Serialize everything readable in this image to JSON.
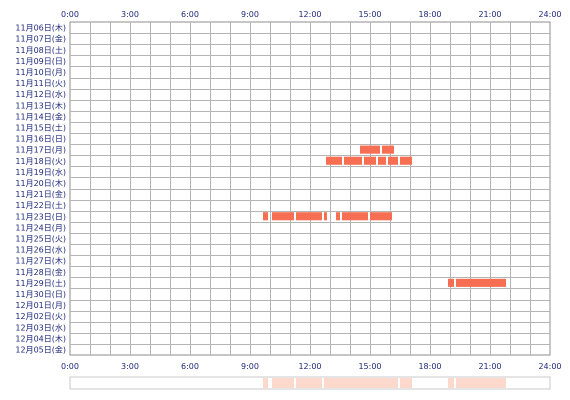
{
  "chart_data": {
    "type": "timeline",
    "x_ticks": [
      "0:00",
      "3:00",
      "6:00",
      "9:00",
      "12:00",
      "15:00",
      "18:00",
      "21:00",
      "24:00"
    ],
    "xlim": [
      0,
      24
    ],
    "grid": true,
    "rows": [
      "11月06日(木)",
      "11月07日(金)",
      "11月08日(土)",
      "11月09日(日)",
      "11月10日(月)",
      "11月11日(火)",
      "11月12日(水)",
      "11月13日(木)",
      "11月14日(金)",
      "11月15日(土)",
      "11月16日(日)",
      "11月17日(月)",
      "11月18日(火)",
      "11月19日(水)",
      "11月20日(木)",
      "11月21日(金)",
      "11月22日(土)",
      "11月23日(日)",
      "11月24日(月)",
      "11月25日(火)",
      "11月26日(水)",
      "11月27日(木)",
      "11月28日(金)",
      "11月29日(土)",
      "11月30日(日)",
      "12月01日(月)",
      "12月02日(火)",
      "12月03日(水)",
      "12月04日(木)",
      "12月05日(金)"
    ],
    "segments": [
      {
        "row": 11,
        "start": 14.5,
        "end": 15.5
      },
      {
        "row": 11,
        "start": 15.6,
        "end": 16.2
      },
      {
        "row": 12,
        "start": 12.8,
        "end": 13.6
      },
      {
        "row": 12,
        "start": 13.7,
        "end": 14.6
      },
      {
        "row": 12,
        "start": 14.7,
        "end": 15.3
      },
      {
        "row": 12,
        "start": 15.4,
        "end": 15.8
      },
      {
        "row": 12,
        "start": 15.9,
        "end": 16.4
      },
      {
        "row": 12,
        "start": 16.5,
        "end": 17.1
      },
      {
        "row": 17,
        "start": 9.65,
        "end": 9.9
      },
      {
        "row": 17,
        "start": 10.1,
        "end": 11.2
      },
      {
        "row": 17,
        "start": 11.3,
        "end": 12.6
      },
      {
        "row": 17,
        "start": 12.7,
        "end": 12.85
      },
      {
        "row": 17,
        "start": 13.3,
        "end": 13.5
      },
      {
        "row": 17,
        "start": 13.6,
        "end": 14.9
      },
      {
        "row": 17,
        "start": 15.0,
        "end": 16.1
      },
      {
        "row": 23,
        "start": 18.9,
        "end": 19.2
      },
      {
        "row": 23,
        "start": 19.3,
        "end": 21.8
      }
    ],
    "colors": {
      "bar": "#f66f53",
      "bar_light": "#fcd9cc",
      "grid": "#b4b4b4",
      "border": "#8c8c8c",
      "text": "#1f2a7a"
    }
  }
}
